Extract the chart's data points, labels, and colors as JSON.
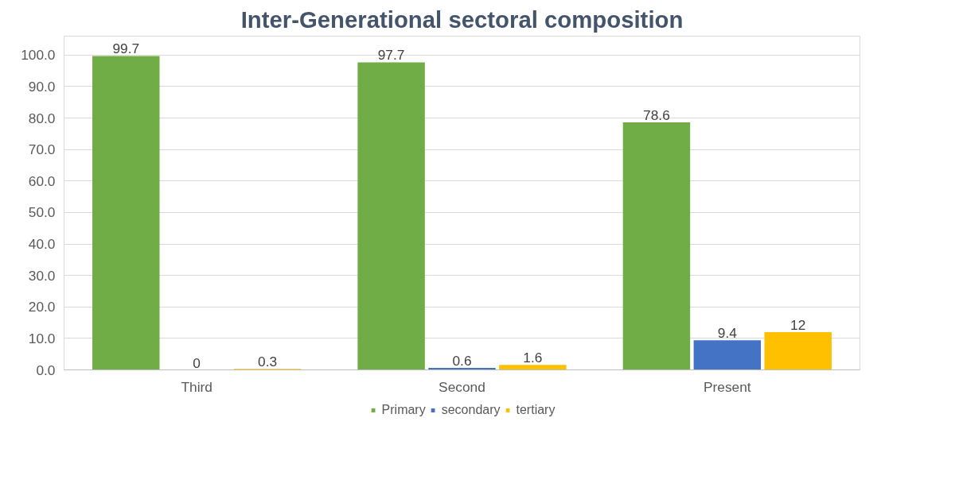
{
  "chart_data": {
    "type": "bar",
    "title": "Inter-Generational sectoral composition",
    "categories": [
      "Third",
      "Second",
      "Present"
    ],
    "series": [
      {
        "name": "Primary",
        "color": "#70ad47",
        "values": [
          99.7,
          97.7,
          78.6
        ]
      },
      {
        "name": "secondary",
        "color": "#4472c4",
        "values": [
          0,
          0.6,
          9.4
        ]
      },
      {
        "name": "tertiary",
        "color": "#ffc000",
        "values": [
          0.3,
          1.6,
          12
        ]
      }
    ],
    "ylim": [
      0,
      106
    ],
    "yticks": [
      {
        "value": 0,
        "label": "0.0"
      },
      {
        "value": 10,
        "label": "10.0"
      },
      {
        "value": 20,
        "label": "20.0"
      },
      {
        "value": 30,
        "label": "30.0"
      },
      {
        "value": 40,
        "label": "40.0"
      },
      {
        "value": 50,
        "label": "50.0"
      },
      {
        "value": 60,
        "label": "60.0"
      },
      {
        "value": 70,
        "label": "70.0"
      },
      {
        "value": 80,
        "label": "80.0"
      },
      {
        "value": 90,
        "label": "90.0"
      },
      {
        "value": 100,
        "label": "100.0"
      }
    ],
    "grid": "y",
    "legend": "bottom",
    "data_labels": true
  }
}
